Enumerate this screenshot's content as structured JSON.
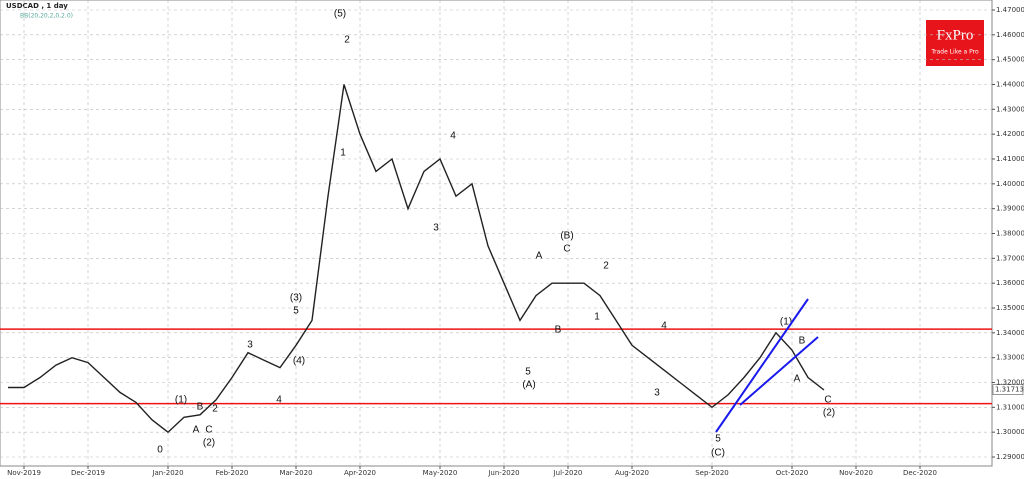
{
  "chart_data": {
    "type": "line",
    "title": "USDCAD , 1 day",
    "subtitle": "BB(20,20,2,0,2.0)",
    "logo": {
      "name": "FxPro",
      "tagline": "Trade Like a Pro"
    },
    "categories": [
      null,
      "Nov-2019",
      null,
      null,
      null,
      "Dec-2019",
      null,
      null,
      null,
      null,
      "Jan-2020",
      null,
      null,
      null,
      "Feb-2020",
      null,
      null,
      null,
      "Mar-2020",
      null,
      null,
      null,
      "Apr-2020",
      null,
      null,
      null,
      null,
      "May-2020",
      null,
      null,
      null,
      "Jun-2020",
      null,
      null,
      null,
      "Jul-2020",
      null,
      null,
      null,
      "Aug-2020",
      null,
      null,
      null,
      null,
      "Sep-2020",
      null,
      null,
      null,
      null,
      "Oct-2020",
      null,
      null,
      null,
      "Nov-2020",
      null,
      null,
      null,
      "Dec-2020",
      null,
      null,
      null,
      null
    ],
    "values": [
      1.318,
      1.318,
      1.322,
      1.327,
      1.33,
      1.328,
      1.322,
      1.316,
      1.312,
      1.305,
      1.3,
      1.306,
      1.307,
      1.313,
      1.322,
      1.332,
      1.329,
      1.326,
      1.335,
      1.345,
      1.395,
      1.44,
      1.42,
      1.405,
      1.41,
      1.39,
      1.405,
      1.41,
      1.395,
      1.4,
      1.375,
      1.36,
      1.345,
      1.355,
      1.36,
      1.36,
      1.36,
      1.355,
      1.345,
      1.335,
      1.33,
      1.325,
      1.32,
      1.315,
      1.31,
      1.315,
      1.322,
      1.33,
      1.34,
      1.333,
      1.322,
      1.317,
      null,
      null,
      null,
      null,
      null,
      null,
      null,
      null,
      null,
      null
    ],
    "color": "#222222",
    "ylim": [
      1.2853,
      1.4731
    ],
    "yticks": [
      {
        "value": 1.29,
        "label": "1.29000"
      },
      {
        "value": 1.3,
        "label": "1.30000"
      },
      {
        "value": 1.31,
        "label": "1.31000"
      },
      {
        "value": 1.32,
        "label": "1.32000"
      },
      {
        "value": 1.33,
        "label": "1.33000"
      },
      {
        "value": 1.34,
        "label": "1.34000"
      },
      {
        "value": 1.35,
        "label": "1.35000"
      },
      {
        "value": 1.36,
        "label": "1.36000"
      },
      {
        "value": 1.37,
        "label": "1.37000"
      },
      {
        "value": 1.38,
        "label": "1.38000"
      },
      {
        "value": 1.39,
        "label": "1.39000"
      },
      {
        "value": 1.4,
        "label": "1.40000"
      },
      {
        "value": 1.41,
        "label": "1.41000"
      },
      {
        "value": 1.42,
        "label": "1.42000"
      },
      {
        "value": 1.43,
        "label": "1.43000"
      },
      {
        "value": 1.44,
        "label": "1.44000"
      },
      {
        "value": 1.45,
        "label": "1.45000"
      },
      {
        "value": 1.46,
        "label": "1.46000"
      },
      {
        "value": 1.47,
        "label": "1.47000"
      }
    ],
    "current_price": {
      "value": 1.31713,
      "label": "1.31713"
    },
    "levels": [
      1.3415,
      1.3115
    ],
    "level_color": "#ee1111",
    "grid": true,
    "annotations": [
      "(5)",
      "2",
      "1",
      "(3)",
      "5",
      "(4)",
      "4",
      "3",
      "4",
      "3",
      "(B)",
      "C",
      "A",
      "B",
      "5",
      "(A)",
      "2",
      "1",
      "4",
      "3",
      "5",
      "(C)",
      "(1)",
      "A",
      "B",
      "C",
      "2",
      "(2)",
      "0",
      "(1)",
      "B",
      "A",
      "C",
      "(2)"
    ]
  }
}
